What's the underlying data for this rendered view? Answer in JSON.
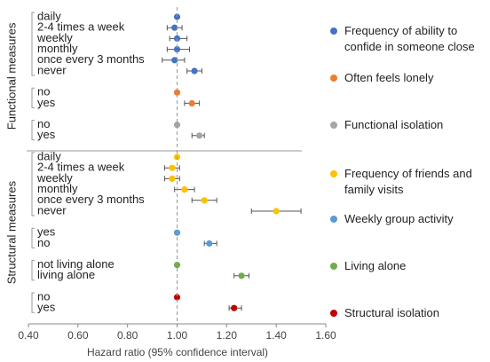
{
  "chart_data": {
    "type": "forest",
    "x_label": "Hazard ratio (95% confidence interval)",
    "xlim": [
      0.4,
      1.6
    ],
    "xticks": [
      {
        "value": 0.4,
        "label": "0.40"
      },
      {
        "value": 0.6,
        "label": "0.60"
      },
      {
        "value": 0.8,
        "label": "0.80"
      },
      {
        "value": 1.0,
        "label": "1.00"
      },
      {
        "value": 1.2,
        "label": "1.20"
      },
      {
        "value": 1.4,
        "label": "1.40"
      },
      {
        "value": 1.6,
        "label": "1.60"
      }
    ],
    "reference": 1.0,
    "groups": [
      {
        "name": "Functional measures",
        "series": [
          {
            "name": "Frequency of ability to confide in someone close",
            "color": "#4472c4",
            "categories": [
              "daily",
              "2-4 times a week",
              "weekly",
              "monthly",
              "once every 3 months",
              "never"
            ],
            "values": [
              1.0,
              0.99,
              1.0,
              1.0,
              0.99,
              1.07
            ],
            "lower": [
              null,
              0.96,
              0.97,
              0.96,
              0.94,
              1.04
            ],
            "upper": [
              null,
              1.02,
              1.04,
              1.05,
              1.03,
              1.1
            ]
          },
          {
            "name": "Often feels lonely",
            "color": "#ed7d31",
            "categories": [
              "no",
              "yes"
            ],
            "values": [
              1.0,
              1.06
            ],
            "lower": [
              null,
              1.03
            ],
            "upper": [
              null,
              1.09
            ]
          },
          {
            "name": "Functional isolation",
            "color": "#a5a5a5",
            "categories": [
              "no",
              "yes"
            ],
            "values": [
              1.0,
              1.09
            ],
            "lower": [
              null,
              1.06
            ],
            "upper": [
              null,
              1.11
            ]
          }
        ]
      },
      {
        "name": "Structural measures",
        "series": [
          {
            "name": "Frequency of friends and family visits",
            "color": "#ffc000",
            "categories": [
              "daily",
              "2-4 times a week",
              "weekly",
              "monthly",
              "once every 3 months",
              "never"
            ],
            "values": [
              1.0,
              0.98,
              0.98,
              1.03,
              1.11,
              1.4
            ],
            "lower": [
              null,
              0.95,
              0.95,
              0.99,
              1.06,
              1.3
            ],
            "upper": [
              null,
              1.01,
              1.01,
              1.07,
              1.16,
              1.5
            ]
          },
          {
            "name": "Weekly group activity",
            "color": "#5b9bd5",
            "categories": [
              "yes",
              "no"
            ],
            "values": [
              1.0,
              1.13
            ],
            "lower": [
              null,
              1.11
            ],
            "upper": [
              null,
              1.16
            ]
          },
          {
            "name": "Living alone",
            "color": "#70ad47",
            "categories": [
              "not living alone",
              "living alone"
            ],
            "values": [
              1.0,
              1.26
            ],
            "lower": [
              null,
              1.23
            ],
            "upper": [
              null,
              1.29
            ]
          },
          {
            "name": "Structural isolation",
            "color": "#c00000",
            "categories": [
              "no",
              "yes"
            ],
            "values": [
              1.0,
              1.23
            ],
            "lower": [
              null,
              1.21
            ],
            "upper": [
              null,
              1.26
            ]
          }
        ]
      }
    ]
  }
}
